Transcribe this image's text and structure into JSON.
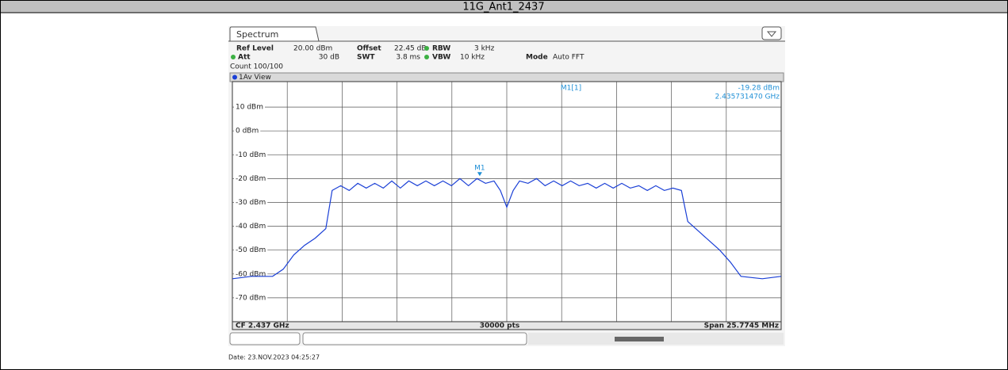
{
  "header": {
    "title": "11G_Ant1_2437"
  },
  "spectrum": {
    "tab": "Spectrum",
    "settings": {
      "ref_level_label": "Ref Level",
      "ref_level": "20.00 dBm",
      "offset_label": "Offset",
      "offset": "22.45 dB",
      "rbw_label": "RBW",
      "rbw": "3 kHz",
      "att_label": "Att",
      "att": "30 dB",
      "swt_label": "SWT",
      "swt": "3.8 ms",
      "vbw_label": "VBW",
      "vbw": "10 kHz",
      "mode_label": "Mode",
      "mode": "Auto FFT",
      "count": "Count 100/100"
    },
    "view": "1Av View",
    "ylim": [
      -80,
      20
    ],
    "xlim": [
      -12.88725,
      12.88725
    ],
    "yticks": [
      {
        "value": 10,
        "label": "10 dBm"
      },
      {
        "value": 0,
        "label": "0 dBm"
      },
      {
        "value": -10,
        "label": "-10 dBm"
      },
      {
        "value": -20,
        "label": "-20 dBm"
      },
      {
        "value": -30,
        "label": "-30 dBm"
      },
      {
        "value": -40,
        "label": "-40 dBm"
      },
      {
        "value": -50,
        "label": "-50 dBm"
      },
      {
        "value": -60,
        "label": "-60 dBm"
      },
      {
        "value": -70,
        "label": "-70 dBm"
      }
    ],
    "trace": {
      "color": "#1a3fd6",
      "x": [
        -12.88,
        -12.0,
        -11.0,
        -10.5,
        -10.0,
        -9.5,
        -9.0,
        -8.5,
        -8.2,
        -7.8,
        -7.4,
        -7.0,
        -6.6,
        -6.2,
        -5.8,
        -5.4,
        -5.0,
        -4.6,
        -4.2,
        -3.8,
        -3.4,
        -3.0,
        -2.6,
        -2.2,
        -1.8,
        -1.4,
        -1.0,
        -0.6,
        -0.3,
        0.0,
        0.3,
        0.6,
        1.0,
        1.4,
        1.8,
        2.2,
        2.6,
        3.0,
        3.4,
        3.8,
        4.2,
        4.6,
        5.0,
        5.4,
        5.8,
        6.2,
        6.6,
        7.0,
        7.4,
        7.8,
        8.2,
        8.5,
        9.0,
        9.5,
        10.0,
        10.5,
        11.0,
        12.0,
        12.88
      ],
      "values": [
        -62,
        -61,
        -61,
        -58,
        -52,
        -48,
        -45,
        -41,
        -25,
        -23,
        -25,
        -22,
        -24,
        -22,
        -24,
        -21,
        -24,
        -21,
        -23,
        -21,
        -23,
        -21,
        -23,
        -20,
        -23,
        -20,
        -22,
        -21,
        -25,
        -32,
        -25,
        -21,
        -22,
        -20,
        -23,
        -21,
        -23,
        -21,
        -23,
        -22,
        -24,
        -22,
        -24,
        -22,
        -24,
        -23,
        -25,
        -23,
        -25,
        -24,
        -25,
        -38,
        -42,
        -46,
        -50,
        -55,
        -61,
        -62,
        -61
      ]
    },
    "marker": {
      "label": "M1",
      "x": -1.27,
      "y": -19.28,
      "readout_name": "M1[1]",
      "readout_level": "-19.28 dBm",
      "readout_freq": "2.435731470 GHz"
    },
    "footer": {
      "cf": "CF 2.437 GHz",
      "points": "30000 pts",
      "span": "Span 25.7745 MHz"
    }
  },
  "date": "Date: 23.NOV.2023 04:25:27"
}
